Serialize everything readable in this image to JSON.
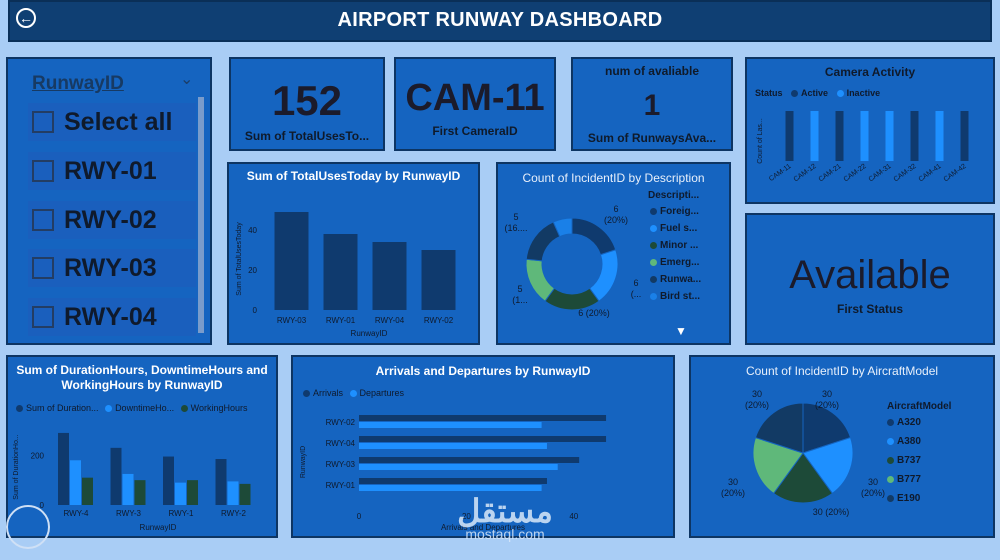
{
  "header": {
    "title": "AIRPORT RUNWAY DASHBOARD"
  },
  "colors": {
    "page_bg": "#a9cdf5",
    "panel_bg": "#1564c0",
    "dark": "#0f3a6e",
    "bright": "#1e90ff",
    "green": "#2e8b57",
    "lightgreen": "#5fb87a",
    "header_bg": "#0f3f73"
  },
  "slicer": {
    "title": "RunwayID",
    "items": [
      "Select all",
      "RWY-01",
      "RWY-02",
      "RWY-03",
      "RWY-04"
    ]
  },
  "cards": {
    "total_uses": {
      "value": "152",
      "label": "Sum of TotalUsesTo..."
    },
    "first_camera": {
      "value": "CAM-11",
      "label": "First CameraID"
    },
    "runways_available": {
      "title": "num of avaliable",
      "value": "1",
      "label": "Sum of RunwaysAva..."
    },
    "status": {
      "value": "Available",
      "label": "First Status"
    }
  },
  "charts": {
    "total_uses": {
      "type": "bar",
      "title": "Sum of TotalUsesToday by RunwayID",
      "xlabel": "RunwayID",
      "ylabel": "Sum of TotalUsesToday",
      "categories": [
        "RWY-03",
        "RWY-01",
        "RWY-04",
        "RWY-02"
      ],
      "values": [
        49,
        38,
        34,
        30
      ],
      "yticks": [
        "0",
        "20",
        "40"
      ],
      "ylim": [
        0,
        55
      ]
    },
    "incident_desc": {
      "type": "pie",
      "title": "Count of IncidentID by Description",
      "legend_title": "Descripti...",
      "legend": [
        "Foreig...",
        "Fuel s...",
        "Minor ...",
        "Emerg...",
        "Runwa...",
        "Bird st..."
      ],
      "labels": [
        "6\n(20%)",
        "6\n(...",
        "6 (20%)",
        "5\n(1...",
        "5\n(16....",
        ""
      ],
      "values": [
        6,
        6,
        6,
        5,
        5,
        2
      ]
    },
    "camera_activity": {
      "type": "bar",
      "title": "Camera Activity",
      "legend_title": "Status",
      "legend": [
        "Active",
        "Inactive"
      ],
      "ylabel": "Count of Las...",
      "categories": [
        "CAM-11",
        "CAM-12",
        "CAM-21",
        "CAM-22",
        "CAM-31",
        "CAM-32",
        "CAM-41",
        "CAM-42"
      ],
      "series": [
        {
          "name": "Active",
          "values": [
            1,
            0,
            1,
            0,
            0,
            1,
            0,
            1
          ]
        },
        {
          "name": "Inactive",
          "values": [
            0,
            1,
            0,
            1,
            1,
            0,
            1,
            0
          ]
        }
      ]
    },
    "durations": {
      "type": "bar",
      "title": "Sum of DurationHours, DowntimeHours and WorkingHours by RunwayID",
      "legend": [
        "Sum of Duration...",
        "DowntimeHo...",
        "WorkingHours"
      ],
      "xlabel": "RunwayID",
      "ylabel": "Sum of DurationHo...",
      "categories": [
        "RWY-4",
        "RWY-3",
        "RWY-1",
        "RWY-2"
      ],
      "series": [
        {
          "name": "Sum of Duration...",
          "values": [
            290,
            230,
            195,
            185
          ]
        },
        {
          "name": "DowntimeHo...",
          "values": [
            180,
            125,
            90,
            95
          ]
        },
        {
          "name": "WorkingHours",
          "values": [
            110,
            100,
            100,
            85
          ]
        }
      ],
      "yticks": [
        "0",
        "200"
      ],
      "ylim": [
        0,
        330
      ]
    },
    "arrivals": {
      "type": "bar",
      "title": "Arrivals and Departures by RunwayID",
      "legend": [
        "Arrivals",
        "Departures"
      ],
      "xlabel": "Arrivals and Departures",
      "ylabel": "RunwayID",
      "categories": [
        "RWY-02",
        "RWY-04",
        "RWY-03",
        "RWY-01"
      ],
      "series": [
        {
          "name": "Arrivals",
          "values": [
            46,
            46,
            41,
            35
          ]
        },
        {
          "name": "Departures",
          "values": [
            34,
            35,
            37,
            34
          ]
        }
      ],
      "xticks": [
        "0",
        "20",
        "40"
      ],
      "xlim": [
        0,
        54
      ]
    },
    "aircraft": {
      "type": "pie",
      "title": "Count of IncidentID by AircraftModel",
      "legend_title": "AircraftModel",
      "legend": [
        "A320",
        "A380",
        "B737",
        "B777",
        "E190"
      ],
      "labels": [
        "30\n(20%)",
        "30\n(20%)",
        "30 (20%)",
        "30\n(20%)",
        "30\n(20%)"
      ],
      "values": [
        30,
        30,
        30,
        30,
        30
      ]
    }
  },
  "watermark": {
    "text": "مستقل",
    "url": "mostaql.com"
  }
}
